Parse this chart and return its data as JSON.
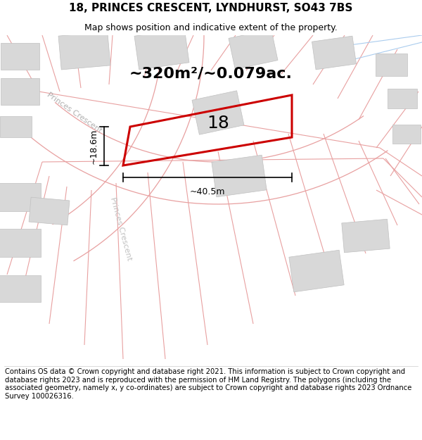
{
  "title_line1": "18, PRINCES CRESCENT, LYNDHURST, SO43 7BS",
  "title_line2": "Map shows position and indicative extent of the property.",
  "footer_text": "Contains OS data © Crown copyright and database right 2021. This information is subject to Crown copyright and database rights 2023 and is reproduced with the permission of HM Land Registry. The polygons (including the associated geometry, namely x, y co-ordinates) are subject to Crown copyright and database rights 2023 Ordnance Survey 100026316.",
  "area_label": "~320m²/~0.079ac.",
  "plot_number": "18",
  "dim_width": "~40.5m",
  "dim_height": "~18.6m",
  "road_label1": "Princes Crescent",
  "road_label2": "Princes Crescent",
  "plot_color": "#cc0000",
  "parcel_line_color": "#e8a0a0",
  "building_fill": "#d8d8d8",
  "building_stroke": "#c0c0c0",
  "title_fontsize": 11,
  "subtitle_fontsize": 9,
  "footer_fontsize": 7.2,
  "area_fontsize": 16,
  "number_fontsize": 18,
  "dim_fontsize": 9
}
